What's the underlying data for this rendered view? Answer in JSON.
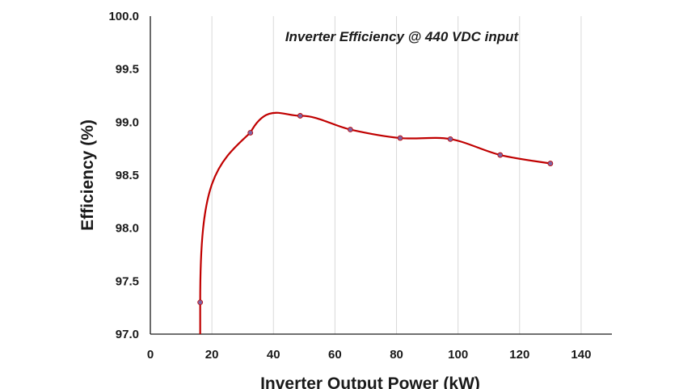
{
  "chart_data": {
    "type": "line",
    "title": "Inverter Efficiency @ 440 VDC input",
    "xlabel": "Inverter Output Power (kW)",
    "ylabel": "Efficiency (%)",
    "xlim": [
      0,
      150
    ],
    "ylim": [
      97.0,
      100.0
    ],
    "xticks": [
      0,
      20,
      40,
      60,
      80,
      100,
      120,
      140
    ],
    "yticks": [
      97.0,
      97.5,
      98.0,
      98.5,
      99.0,
      99.5,
      100.0
    ],
    "xtick_labels": [
      "0",
      "20",
      "40",
      "60",
      "80",
      "100",
      "120",
      "140"
    ],
    "ytick_labels": [
      "97.0",
      "97.5",
      "98.0",
      "98.5",
      "99.0",
      "99.5",
      "100.0"
    ],
    "grid": "vertical",
    "series": [
      {
        "x": [
          16.2,
          32.5,
          48.7,
          65.0,
          81.2,
          97.5,
          113.7,
          130.0
        ],
        "y": [
          97.3,
          98.9,
          99.06,
          98.93,
          98.85,
          98.84,
          98.69,
          98.61
        ],
        "line_color": "#c00000",
        "marker_color": "#8064a2"
      }
    ]
  }
}
